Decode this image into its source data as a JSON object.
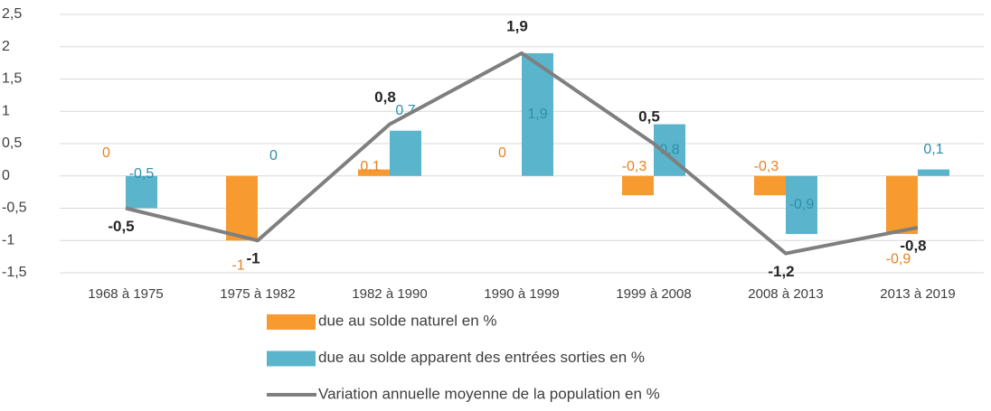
{
  "chart_data": {
    "type": "bar-line",
    "categories": [
      "1968 à 1975",
      "1975 à 1982",
      "1982 à 1990",
      "1990 à 1999",
      "1999 à 2008",
      "2008 à 2013",
      "2013 à 2019"
    ],
    "series": [
      {
        "name": "due au solde naturel en %",
        "type": "bar",
        "color": "#f79a2f",
        "label_color": "#e8801f",
        "values": [
          0,
          -1,
          0.1,
          0,
          -0.3,
          -0.3,
          -0.9
        ],
        "value_labels": [
          "0",
          "-1",
          "0,1",
          "0",
          "-0,3",
          "-0,3",
          "-0,9"
        ]
      },
      {
        "name": "due au solde apparent des entrées sorties en %",
        "type": "bar",
        "color": "#5ab5cc",
        "label_color": "#2f8ea8",
        "values": [
          -0.5,
          0,
          0.7,
          1.9,
          0.8,
          -0.9,
          0.1
        ],
        "value_labels": [
          "-0,5",
          "0",
          "0,7",
          "1,9",
          "0,8",
          "-0,9",
          "0,1"
        ]
      },
      {
        "name": "Variation annuelle moyenne de la population en %",
        "type": "line",
        "color": "#7f7f7f",
        "label_color": "#262626",
        "values": [
          -0.5,
          -1,
          0.8,
          1.9,
          0.5,
          -1.2,
          -0.8
        ],
        "value_labels": [
          "-0,5",
          "-1",
          "0,8",
          "1,9",
          "0,5",
          "-1,2",
          "-0,8"
        ]
      }
    ],
    "ylim": [
      -1.5,
      2.5
    ],
    "yticks": [
      {
        "value": -1.5,
        "label": "-1,5"
      },
      -1,
      {
        "value": -0.5,
        "label": "-0,5"
      },
      0,
      {
        "value": 0.5,
        "label": "0,5"
      },
      1,
      {
        "value": 1.5,
        "label": "1,5"
      },
      2,
      {
        "value": 2.5,
        "label": "2,5"
      }
    ],
    "grid": true,
    "legend": "bottom"
  }
}
